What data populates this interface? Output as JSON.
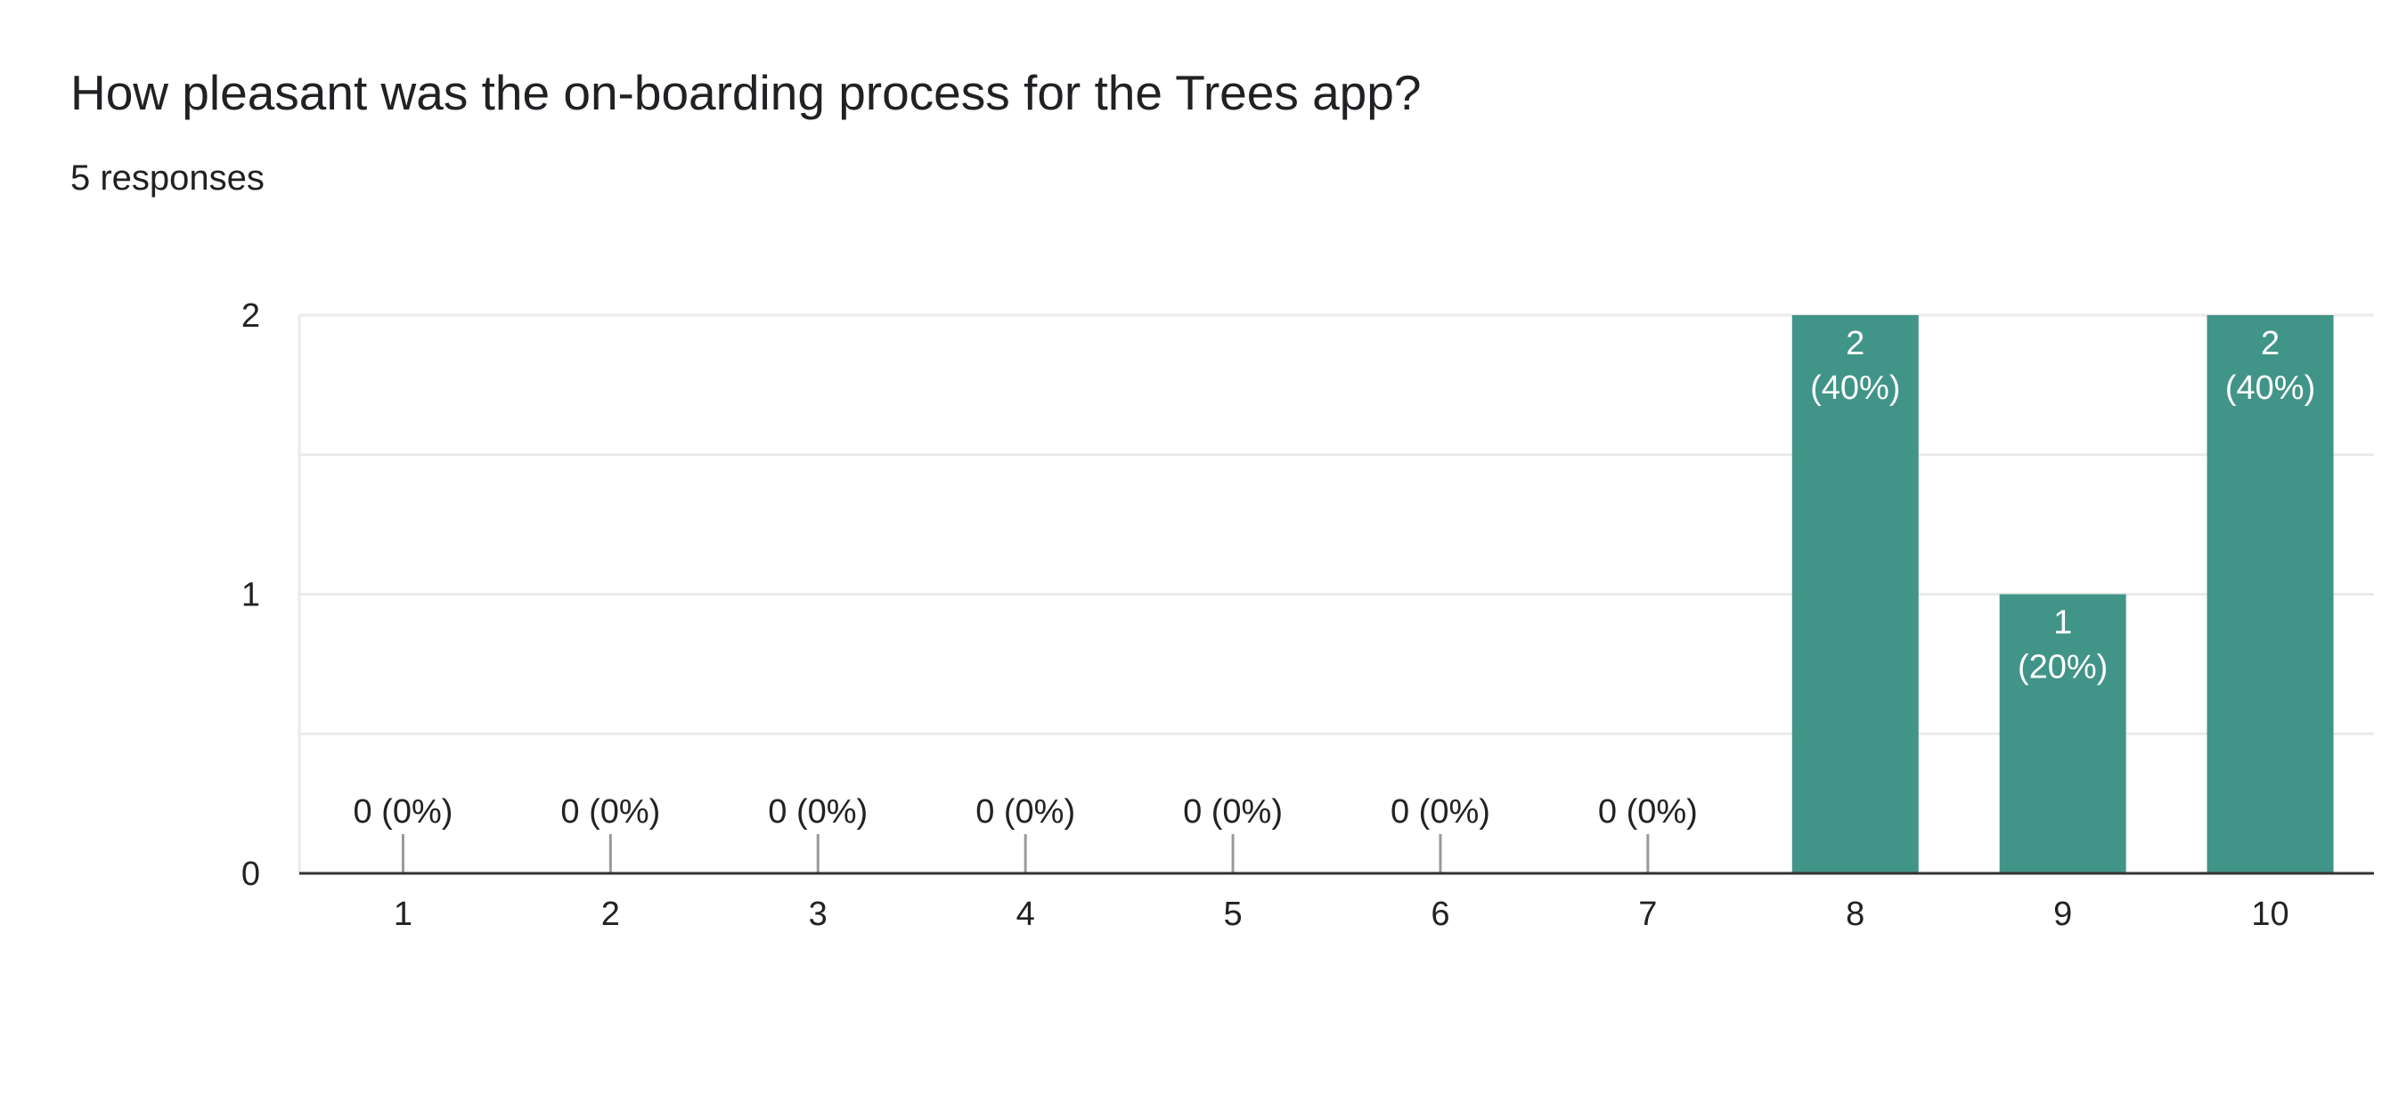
{
  "header": {
    "question": "How pleasant was the on-boarding process for the Trees app?",
    "responses": "5 responses"
  },
  "colors": {
    "bar": "#419488",
    "gridline": "#eaeaea",
    "axis": "#333333",
    "zero_tick": "#999999",
    "label_dark": "#222222",
    "label_light": "#ffffff"
  },
  "chart_data": {
    "type": "bar",
    "title": "",
    "xlabel": "",
    "ylabel": "",
    "categories": [
      "1",
      "2",
      "3",
      "4",
      "5",
      "6",
      "7",
      "8",
      "9",
      "10"
    ],
    "values": [
      0,
      0,
      0,
      0,
      0,
      0,
      0,
      2,
      1,
      2
    ],
    "data_labels": [
      [
        "0 (0%)"
      ],
      [
        "0 (0%)"
      ],
      [
        "0 (0%)"
      ],
      [
        "0 (0%)"
      ],
      [
        "0 (0%)"
      ],
      [
        "0 (0%)"
      ],
      [
        "0 (0%)"
      ],
      [
        "2",
        "(40%)"
      ],
      [
        "1",
        "(20%)"
      ],
      [
        "2",
        "(40%)"
      ]
    ],
    "ylim": [
      0,
      2
    ],
    "yticks": [
      "0",
      "1",
      "2"
    ],
    "grid": true,
    "legend": "none"
  }
}
